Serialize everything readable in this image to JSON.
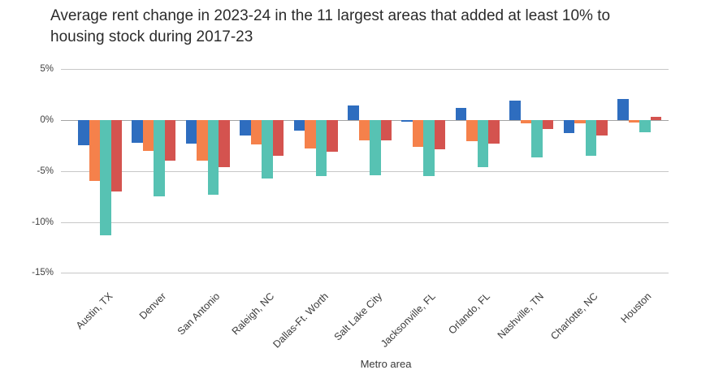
{
  "title": "Average rent change in 2023-24 in the 11 largest areas that added at least 10% to\nhousing stock during 2017-23",
  "chart_data": {
    "type": "bar",
    "title": "Average rent change in 2023-24 in the 11 largest areas that added at least 10% to housing stock during 2017-23",
    "xlabel": "Metro area",
    "ylabel": "",
    "ylim": [
      -15,
      5
    ],
    "yticks": [
      5,
      0,
      -5,
      -10,
      -15
    ],
    "ytick_labels": [
      "5%",
      "0%",
      "-5%",
      "-10%",
      "-15%"
    ],
    "grid": true,
    "legend_position": "none",
    "categories": [
      "Austin, TX",
      "Denver",
      "San Antonio",
      "Raleigh, NC",
      "Dallas-Ft. Worth",
      "Salt Lake City",
      "Jacksonville, FL",
      "Orlando, FL",
      "Nashville, TN",
      "Charlotte, NC",
      "Houston"
    ],
    "series": [
      {
        "name": "blue",
        "color": "#2e6dbf",
        "values": [
          -2.5,
          -2.2,
          -2.3,
          -1.5,
          -1.0,
          1.4,
          -0.15,
          1.2,
          1.9,
          -1.3,
          2.1
        ]
      },
      {
        "name": "orange",
        "color": "#f5814b",
        "values": [
          -6.0,
          -3.0,
          -4.0,
          -2.4,
          -2.8,
          -2.0,
          -2.6,
          -2.1,
          -0.3,
          -0.3,
          -0.2
        ]
      },
      {
        "name": "teal",
        "color": "#57c2b3",
        "values": [
          -11.3,
          -7.5,
          -7.3,
          -5.7,
          -5.5,
          -5.4,
          -5.5,
          -4.6,
          -3.7,
          -3.5,
          -1.2
        ]
      },
      {
        "name": "red",
        "color": "#d4534f",
        "values": [
          -7.0,
          -4.0,
          -4.6,
          -3.5,
          -3.1,
          -2.0,
          -2.9,
          -2.3,
          -0.9,
          -1.5,
          0.3
        ]
      }
    ]
  },
  "colors": {
    "background": "#ffffff",
    "gridline": "#c7c7c7",
    "zero_line": "#a3a3a3",
    "title_text": "#2b2b2b",
    "tick_text": "#3a3a3a"
  }
}
